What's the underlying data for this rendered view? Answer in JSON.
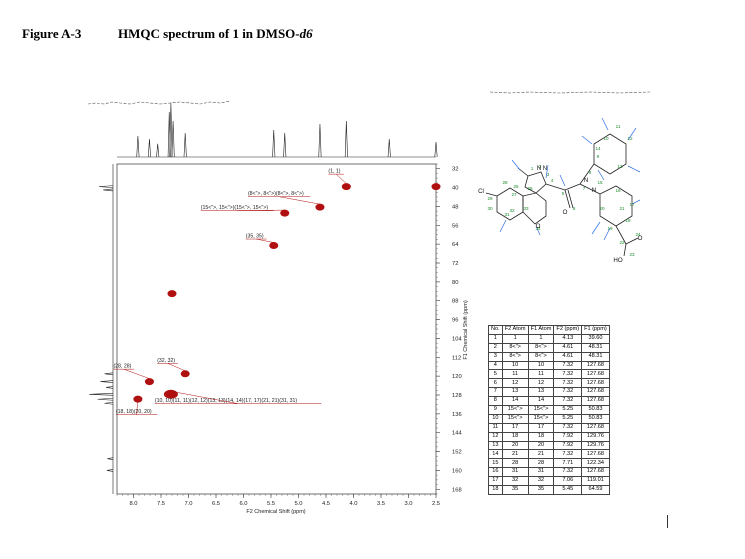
{
  "heading": {
    "figure_label": "Figure A-3",
    "caption_main": "HMQC spectrum of 1 in DMSO-",
    "caption_italic": "d6"
  },
  "chart_data": {
    "type": "scatter",
    "title": "",
    "xlabel": "F2 Chemical Shift (ppm)",
    "ylabel": "F1 Chemical Shift (ppm)",
    "xlim": [
      8.3,
      2.5
    ],
    "ylim": [
      170,
      30
    ],
    "x_ticks": [
      "8.0",
      "7.5",
      "7.0",
      "6.5",
      "6.0",
      "5.5",
      "5.0",
      "4.5",
      "4.0",
      "3.5",
      "3.0",
      "2.5"
    ],
    "x_tick_values": [
      8.0,
      7.5,
      7.0,
      6.5,
      6.0,
      5.5,
      5.0,
      4.5,
      4.0,
      3.5,
      3.0,
      2.5
    ],
    "y_ticks": [
      "32",
      "40",
      "48",
      "56",
      "64",
      "72",
      "80",
      "88",
      "96",
      "104",
      "112",
      "120",
      "128",
      "136",
      "144",
      "152",
      "160",
      "168"
    ],
    "y_tick_values": [
      32,
      40,
      48,
      56,
      64,
      72,
      80,
      88,
      96,
      104,
      112,
      120,
      128,
      136,
      144,
      152,
      160,
      168
    ],
    "grid": false,
    "peak_color": "#b01010",
    "peaks": [
      {
        "x": 4.13,
        "y": 39.6,
        "label": "(1, 1)"
      },
      {
        "x": 4.61,
        "y": 48.31,
        "label": "(8<\">, 8<\">)(8<\">, 8<\">)"
      },
      {
        "x": 5.25,
        "y": 50.83,
        "label": "(15<\">, 15<\">)(15<\">, 15<\">)"
      },
      {
        "x": 5.45,
        "y": 64.59,
        "label": "(35, 35)"
      },
      {
        "x": 7.06,
        "y": 119.01,
        "label": "(32, 32)"
      },
      {
        "x": 7.71,
        "y": 122.34,
        "label": "(28, 28)"
      },
      {
        "x": 7.32,
        "y": 127.68,
        "label": "(10, 10)(11, 11)(12, 12)(13, 13)(14, 14)(17, 17)(21, 21)(31, 31)"
      },
      {
        "x": 7.92,
        "y": 129.76,
        "label": "(18, 18)(20, 20)"
      },
      {
        "x": 2.5,
        "y": 39.6,
        "label": ""
      },
      {
        "x": 7.3,
        "y": 85.0,
        "label": ""
      }
    ],
    "proton_1d_peaks": [
      {
        "x": 7.92,
        "h": 0.35
      },
      {
        "x": 7.71,
        "h": 0.3
      },
      {
        "x": 7.56,
        "h": 0.22
      },
      {
        "x": 7.35,
        "h": 0.75
      },
      {
        "x": 7.32,
        "h": 0.9
      },
      {
        "x": 7.28,
        "h": 0.6
      },
      {
        "x": 7.06,
        "h": 0.4
      },
      {
        "x": 5.45,
        "h": 0.45
      },
      {
        "x": 5.25,
        "h": 0.4
      },
      {
        "x": 4.61,
        "h": 0.55
      },
      {
        "x": 4.13,
        "h": 0.6
      },
      {
        "x": 3.35,
        "h": 0.3
      },
      {
        "x": 2.5,
        "h": 0.25
      }
    ],
    "carbon_1d_peaks": [
      {
        "y": 39.6,
        "h": 0.5
      },
      {
        "y": 41.0,
        "h": 0.35
      },
      {
        "y": 119.0,
        "h": 0.3
      },
      {
        "y": 122.3,
        "h": 0.45
      },
      {
        "y": 124.8,
        "h": 0.25
      },
      {
        "y": 127.7,
        "h": 0.85
      },
      {
        "y": 129.8,
        "h": 0.55
      },
      {
        "y": 131.5,
        "h": 0.3
      },
      {
        "y": 155.0,
        "h": 0.2
      },
      {
        "y": 160.0,
        "h": 0.22
      }
    ]
  },
  "structure": {
    "atom_labels": [
      "1",
      "2",
      "3",
      "4",
      "5",
      "6",
      "7",
      "8",
      "9",
      "10",
      "11",
      "12",
      "13",
      "14",
      "15",
      "16",
      "17",
      "18",
      "19",
      "20",
      "21",
      "22",
      "23",
      "24",
      "25",
      "26",
      "27",
      "28",
      "29",
      "30",
      "31",
      "32",
      "33",
      "34"
    ],
    "element_labels": [
      "N",
      "N",
      "N",
      "N",
      "O",
      "O",
      "Cl",
      "HO",
      "O"
    ]
  },
  "peak_table": {
    "headers": [
      "No.",
      "F2 Atom",
      "F1 Atom",
      "F2 (ppm)",
      "F1 (ppm)"
    ],
    "rows": [
      [
        "1",
        "1",
        "1",
        "4.13",
        "39.60"
      ],
      [
        "2",
        "8<\">",
        "8<\">",
        "4.61",
        "48.31"
      ],
      [
        "3",
        "8<\">",
        "8<\">",
        "4.61",
        "48.31"
      ],
      [
        "4",
        "10",
        "10",
        "7.32",
        "127.68"
      ],
      [
        "5",
        "11",
        "11",
        "7.32",
        "127.68"
      ],
      [
        "6",
        "12",
        "12",
        "7.32",
        "127.68"
      ],
      [
        "7",
        "13",
        "13",
        "7.32",
        "127.68"
      ],
      [
        "8",
        "14",
        "14",
        "7.32",
        "127.68"
      ],
      [
        "9",
        "15<\">",
        "15<\">",
        "5.25",
        "50.83"
      ],
      [
        "10",
        "15<\">",
        "15<\">",
        "5.25",
        "50.83"
      ],
      [
        "11",
        "17",
        "17",
        "7.32",
        "127.68"
      ],
      [
        "12",
        "18",
        "18",
        "7.92",
        "129.76"
      ],
      [
        "13",
        "20",
        "20",
        "7.92",
        "129.76"
      ],
      [
        "14",
        "21",
        "21",
        "7.32",
        "127.68"
      ],
      [
        "15",
        "28",
        "28",
        "7.71",
        "122.34"
      ],
      [
        "16",
        "31",
        "31",
        "7.32",
        "127.68"
      ],
      [
        "17",
        "32",
        "32",
        "7.06",
        "119.01"
      ],
      [
        "18",
        "35",
        "35",
        "5.45",
        "64.59"
      ]
    ]
  }
}
